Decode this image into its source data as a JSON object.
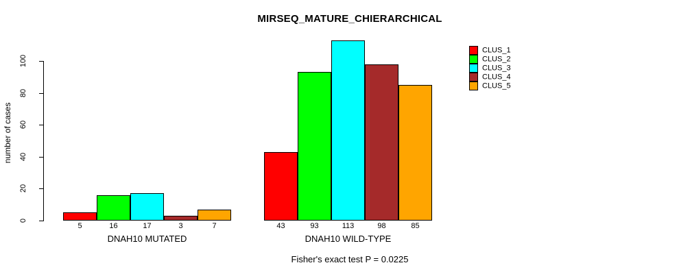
{
  "chart_data": {
    "type": "bar",
    "title": "MIRSEQ_MATURE_CHIERARCHICAL",
    "ylabel": "number of cases",
    "xlabel": "",
    "caption": "Fisher's exact test P = 0.0225",
    "categories": [
      "DNAH10 MUTATED",
      "DNAH10 WILD-TYPE"
    ],
    "series": [
      {
        "name": "CLUS_1",
        "color": "#FF0000",
        "values": [
          5,
          43
        ]
      },
      {
        "name": "CLUS_2",
        "color": "#00FF00",
        "values": [
          16,
          93
        ]
      },
      {
        "name": "CLUS_3",
        "color": "#00FFFF",
        "values": [
          17,
          113
        ]
      },
      {
        "name": "CLUS_4",
        "color": "#A52A2A",
        "values": [
          3,
          98
        ]
      },
      {
        "name": "CLUS_5",
        "color": "#FFA500",
        "values": [
          7,
          85
        ]
      }
    ],
    "yticks": [
      0,
      20,
      40,
      60,
      80,
      100
    ],
    "ylim": [
      0,
      113
    ],
    "grid": false,
    "bar_value_labels_shown": true,
    "legend_position": "top-right",
    "background": "#FFFFFF",
    "axis_color": "#000000"
  }
}
